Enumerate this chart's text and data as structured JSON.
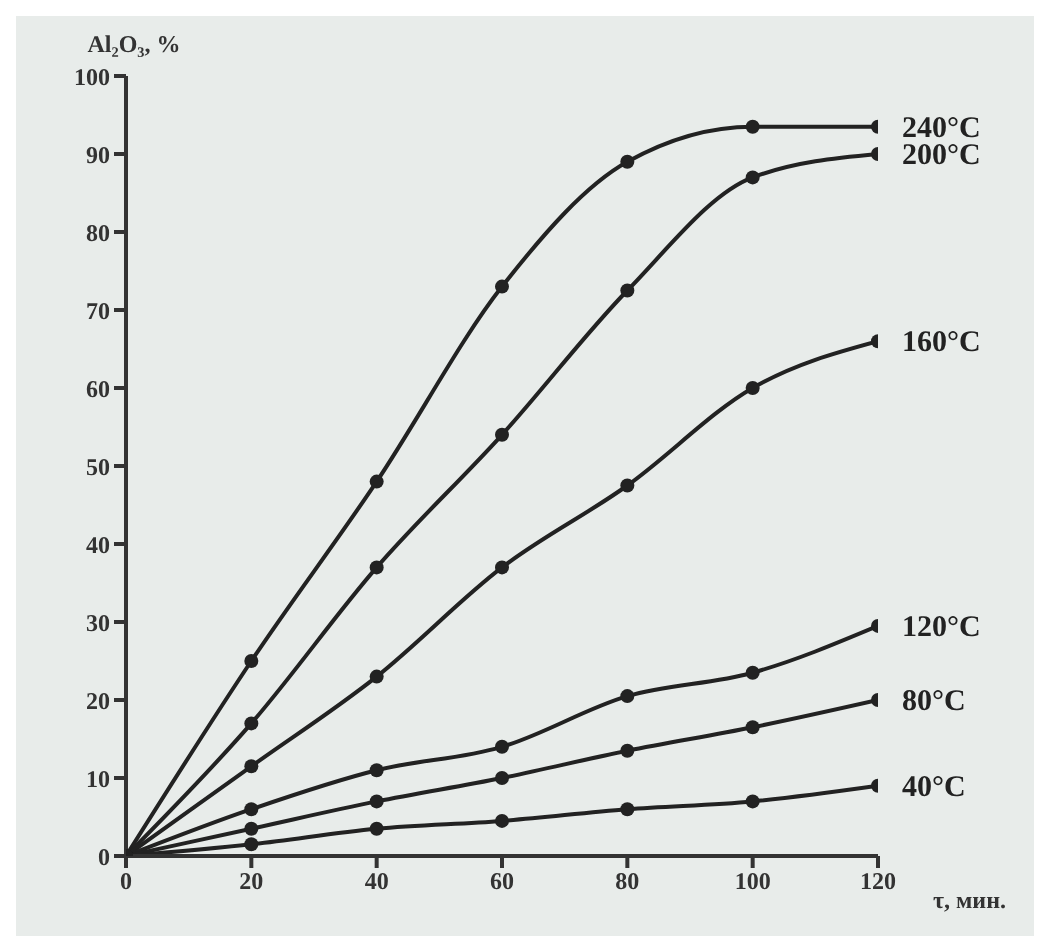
{
  "chart_data": {
    "type": "line",
    "xlabel": "τ, мин.",
    "ylabel": "Al₂O₃, %",
    "x": [
      0,
      20,
      40,
      60,
      80,
      100,
      120
    ],
    "xlim": [
      0,
      120
    ],
    "xticks": [
      0,
      20,
      40,
      60,
      80,
      100,
      120
    ],
    "ylim": [
      0,
      100
    ],
    "yticks": [
      0,
      10,
      20,
      30,
      40,
      50,
      60,
      70,
      80,
      90,
      100
    ],
    "grid": false,
    "legend": false,
    "marker": "circle",
    "line_style": "solid",
    "series": [
      {
        "name": "240°C",
        "color": "#222222",
        "values": [
          0,
          25,
          48,
          73,
          89,
          93.5,
          93.5
        ]
      },
      {
        "name": "200°C",
        "color": "#222222",
        "values": [
          0,
          17,
          37,
          54,
          72.5,
          87,
          90
        ]
      },
      {
        "name": "160°C",
        "color": "#222222",
        "values": [
          0,
          11.5,
          23,
          37,
          47.5,
          60,
          66
        ]
      },
      {
        "name": "120°C",
        "color": "#222222",
        "values": [
          0,
          6,
          11,
          14,
          20.5,
          23.5,
          29.5
        ]
      },
      {
        "name": "80°C",
        "color": "#222222",
        "values": [
          0,
          3.5,
          7,
          10,
          13.5,
          16.5,
          20
        ]
      },
      {
        "name": "40°C",
        "color": "#222222",
        "values": [
          0,
          1.5,
          3.5,
          4.5,
          6,
          7,
          9
        ]
      }
    ]
  }
}
